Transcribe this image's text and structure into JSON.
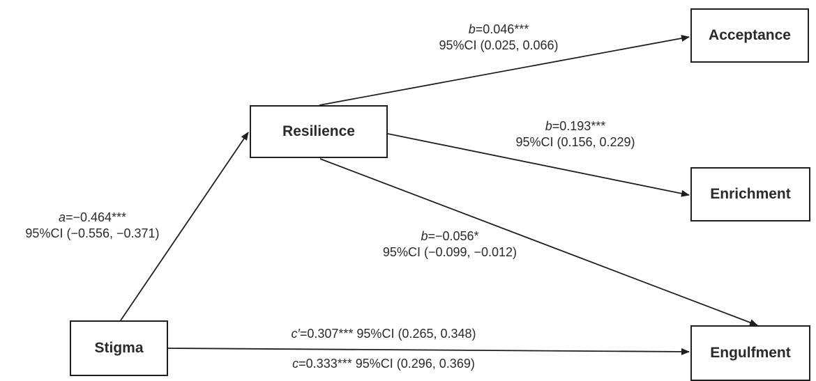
{
  "nodes": {
    "resilience": "Resilience",
    "stigma": "Stigma",
    "acceptance": "Acceptance",
    "enrichment": "Enrichment",
    "engulfment": "Engulfment"
  },
  "paths": {
    "a": {
      "symbol": "a",
      "coef": "=−0.464***",
      "ci": "95%CI (−0.556, −0.371)"
    },
    "b_acceptance": {
      "symbol": "b",
      "coef": "=0.046***",
      "ci": "95%CI (0.025, 0.066)"
    },
    "b_enrichment": {
      "symbol": "b",
      "coef": "=0.193***",
      "ci": "95%CI (0.156, 0.229)"
    },
    "b_engulfment": {
      "symbol": "b",
      "coef": "=−0.056*",
      "ci": "95%CI (−0.099, −0.012)"
    },
    "c_prime": {
      "symbol": "c′",
      "text": "=0.307*** 95%CI (0.265, 0.348)"
    },
    "c": {
      "symbol": "c",
      "text": "=0.333*** 95%CI (0.296, 0.369)"
    }
  }
}
